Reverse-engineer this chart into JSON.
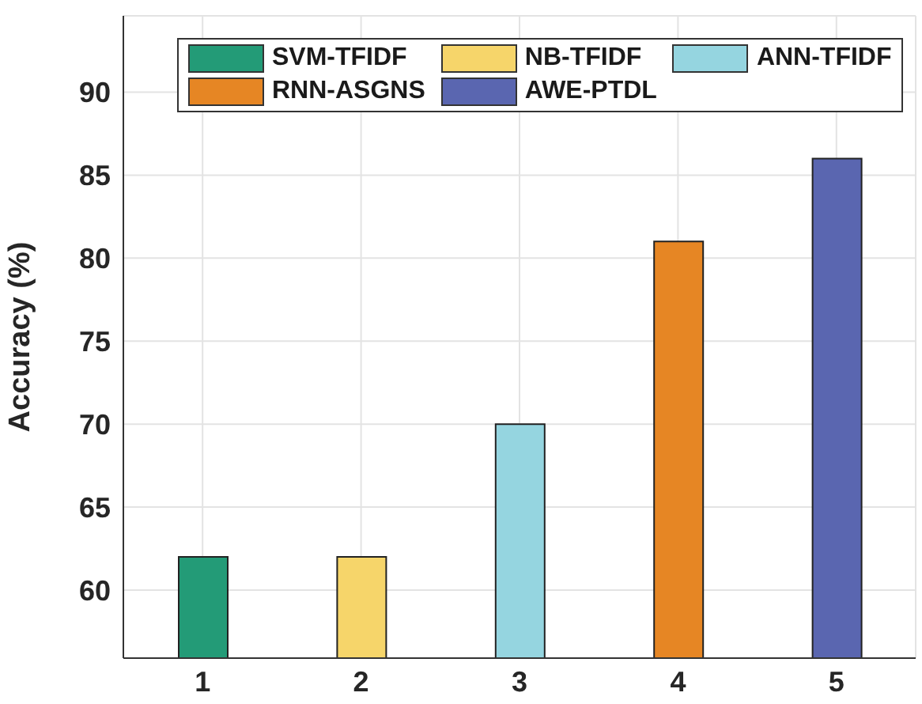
{
  "chart_data": {
    "type": "bar",
    "ylabel": "Accuracy (%)",
    "categories": [
      "1",
      "2",
      "3",
      "4",
      "5"
    ],
    "series": [
      {
        "name": "SVM-TFIDF",
        "color": "#239b77",
        "values": [
          62,
          null,
          null,
          null,
          null
        ]
      },
      {
        "name": "NB-TFIDF",
        "color": "#f6d56a",
        "values": [
          null,
          62,
          null,
          null,
          null
        ]
      },
      {
        "name": "ANN-TFIDF",
        "color": "#95d5e0",
        "values": [
          null,
          null,
          70,
          null,
          null
        ]
      },
      {
        "name": "RNN-ASGNS",
        "color": "#e68624",
        "values": [
          null,
          null,
          null,
          81,
          null
        ]
      },
      {
        "name": "AWE-PTDL",
        "color": "#5a66b0",
        "values": [
          null,
          null,
          null,
          null,
          86
        ]
      }
    ],
    "ylim": [
      55.9,
      94.6
    ],
    "yticks": [
      60,
      65,
      70,
      75,
      80,
      85,
      90
    ],
    "grid": true,
    "legend": "top"
  }
}
